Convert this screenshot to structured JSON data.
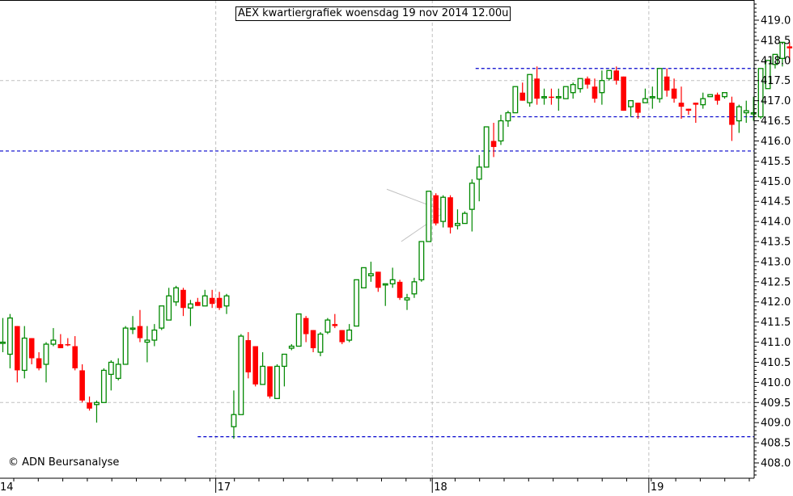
{
  "title": "AEX kwartiergrafiek woensdag 19 nov 2014 12.00u",
  "copyright": "© ADN Beursanalyse",
  "colors": {
    "up": "#008800",
    "down": "#ff0000",
    "support_line": "#0000cc",
    "grid": "#c0c0c0",
    "axis": "#000000",
    "triangle": "#c0c0c0"
  },
  "chart_data": {
    "type": "candlestick",
    "title": "AEX kwartiergrafiek woensdag 19 nov 2014 12.00u",
    "xlabel": "",
    "ylabel": "",
    "ylim": [
      407.6,
      419.5
    ],
    "y_ticks": [
      "419.0",
      "418.5",
      "418.0",
      "417.5",
      "417.0",
      "416.5",
      "416.0",
      "415.5",
      "415.0",
      "414.5",
      "414.0",
      "413.5",
      "413.0",
      "412.5",
      "412.0",
      "411.5",
      "411.0",
      "410.5",
      "410.0",
      "409.5",
      "409.0",
      "408.5",
      "408.0"
    ],
    "x_day_labels": [
      {
        "label": "14",
        "index": 0
      },
      {
        "label": "17",
        "index": 29.5
      },
      {
        "label": "18",
        "index": 59.5
      },
      {
        "label": "19",
        "index": 89.5
      }
    ],
    "horizontal_lines": [
      {
        "price": 415.75,
        "from_index": 0,
        "to_index": 104,
        "style": "dashed",
        "color": "#0000cc"
      },
      {
        "price": 408.65,
        "from_index": 27,
        "to_index": 104,
        "style": "dashed",
        "color": "#0000cc"
      },
      {
        "price": 417.8,
        "from_index": 65.5,
        "to_index": 104,
        "style": "dashed",
        "color": "#0000cc"
      },
      {
        "price": 416.6,
        "from_index": 70.5,
        "to_index": 104,
        "style": "dashed",
        "color": "#0000cc"
      }
    ],
    "grid_lines": {
      "prices": [
        417.5,
        409.5
      ],
      "day_separators": [
        29.5,
        59.5,
        89.5
      ]
    },
    "triangle_pattern": {
      "apex_index": 61.3,
      "apex_price": 414.25,
      "upper_start": [
        53.2,
        414.8
      ],
      "lower_start": [
        55.2,
        413.5
      ]
    },
    "candles": [
      {
        "o": 411.0,
        "h": 411.6,
        "l": 410.75,
        "c": 411.0
      },
      {
        "o": 410.7,
        "h": 411.7,
        "l": 410.35,
        "c": 411.6
      },
      {
        "o": 411.4,
        "h": 411.4,
        "l": 410.0,
        "c": 410.3
      },
      {
        "o": 410.3,
        "h": 411.4,
        "l": 410.1,
        "c": 411.1
      },
      {
        "o": 411.1,
        "h": 411.1,
        "l": 410.45,
        "c": 410.6
      },
      {
        "o": 410.6,
        "h": 410.75,
        "l": 410.3,
        "c": 410.35
      },
      {
        "o": 410.45,
        "h": 411.0,
        "l": 410.0,
        "c": 410.95
      },
      {
        "o": 410.95,
        "h": 411.35,
        "l": 410.9,
        "c": 411.05
      },
      {
        "o": 410.95,
        "h": 411.2,
        "l": 410.85,
        "c": 410.85
      },
      {
        "o": 410.95,
        "h": 411.1,
        "l": 410.9,
        "c": 410.92
      },
      {
        "o": 410.9,
        "h": 411.15,
        "l": 410.3,
        "c": 410.35
      },
      {
        "o": 410.3,
        "h": 410.45,
        "l": 409.5,
        "c": 409.55
      },
      {
        "o": 409.5,
        "h": 409.65,
        "l": 409.3,
        "c": 409.35
      },
      {
        "o": 409.45,
        "h": 409.55,
        "l": 409.0,
        "c": 409.5
      },
      {
        "o": 409.5,
        "h": 410.35,
        "l": 409.5,
        "c": 410.3
      },
      {
        "o": 410.2,
        "h": 410.55,
        "l": 409.8,
        "c": 410.5
      },
      {
        "o": 410.1,
        "h": 410.6,
        "l": 410.05,
        "c": 410.45
      },
      {
        "o": 410.45,
        "h": 411.4,
        "l": 410.45,
        "c": 411.35
      },
      {
        "o": 411.35,
        "h": 411.65,
        "l": 411.2,
        "c": 411.35
      },
      {
        "o": 411.4,
        "h": 411.8,
        "l": 411.0,
        "c": 411.1
      },
      {
        "o": 411.0,
        "h": 411.4,
        "l": 410.5,
        "c": 411.05
      },
      {
        "o": 411.05,
        "h": 411.45,
        "l": 410.9,
        "c": 411.3
      },
      {
        "o": 411.35,
        "h": 411.9,
        "l": 411.3,
        "c": 411.9
      },
      {
        "o": 411.55,
        "h": 412.35,
        "l": 411.55,
        "c": 412.15
      },
      {
        "o": 412.0,
        "h": 412.4,
        "l": 411.9,
        "c": 412.35
      },
      {
        "o": 412.3,
        "h": 412.35,
        "l": 411.65,
        "c": 411.85
      },
      {
        "o": 411.85,
        "h": 412.05,
        "l": 411.4,
        "c": 411.95
      },
      {
        "o": 412.0,
        "h": 412.1,
        "l": 411.9,
        "c": 411.9
      },
      {
        "o": 411.9,
        "h": 412.3,
        "l": 411.9,
        "c": 412.15
      },
      {
        "o": 412.1,
        "h": 412.3,
        "l": 411.85,
        "c": 411.95
      },
      {
        "o": 412.1,
        "h": 412.25,
        "l": 411.8,
        "c": 411.85
      },
      {
        "o": 411.9,
        "h": 412.2,
        "l": 411.7,
        "c": 412.15
      },
      {
        "o": 408.9,
        "h": 409.8,
        "l": 408.6,
        "c": 409.2
      },
      {
        "o": 409.2,
        "h": 411.2,
        "l": 409.2,
        "c": 411.15
      },
      {
        "o": 411.05,
        "h": 411.25,
        "l": 410.1,
        "c": 410.25
      },
      {
        "o": 410.9,
        "h": 410.9,
        "l": 409.9,
        "c": 409.95
      },
      {
        "o": 409.95,
        "h": 410.75,
        "l": 409.95,
        "c": 410.4
      },
      {
        "o": 410.4,
        "h": 410.4,
        "l": 409.6,
        "c": 409.65
      },
      {
        "o": 409.6,
        "h": 410.45,
        "l": 409.6,
        "c": 410.4
      },
      {
        "o": 410.4,
        "h": 410.7,
        "l": 409.9,
        "c": 410.7
      },
      {
        "o": 410.85,
        "h": 410.95,
        "l": 410.8,
        "c": 410.9
      },
      {
        "o": 410.9,
        "h": 411.7,
        "l": 410.9,
        "c": 411.7
      },
      {
        "o": 411.6,
        "h": 411.65,
        "l": 411.0,
        "c": 411.2
      },
      {
        "o": 411.3,
        "h": 411.25,
        "l": 410.75,
        "c": 410.85
      },
      {
        "o": 410.75,
        "h": 411.25,
        "l": 410.65,
        "c": 411.2
      },
      {
        "o": 411.25,
        "h": 411.6,
        "l": 411.2,
        "c": 411.55
      },
      {
        "o": 411.45,
        "h": 411.7,
        "l": 411.35,
        "c": 411.4
      },
      {
        "o": 411.3,
        "h": 411.3,
        "l": 410.95,
        "c": 411.0
      },
      {
        "o": 411.05,
        "h": 411.45,
        "l": 411.0,
        "c": 411.3
      },
      {
        "o": 411.4,
        "h": 412.55,
        "l": 411.4,
        "c": 412.55
      },
      {
        "o": 412.35,
        "h": 412.85,
        "l": 412.35,
        "c": 412.85
      },
      {
        "o": 412.65,
        "h": 413.0,
        "l": 412.5,
        "c": 412.7
      },
      {
        "o": 412.75,
        "h": 412.75,
        "l": 412.25,
        "c": 412.35
      },
      {
        "o": 412.45,
        "h": 412.45,
        "l": 411.9,
        "c": 412.45
      },
      {
        "o": 412.45,
        "h": 412.85,
        "l": 412.35,
        "c": 412.55
      },
      {
        "o": 412.5,
        "h": 412.55,
        "l": 412.05,
        "c": 412.1
      },
      {
        "o": 412.05,
        "h": 412.2,
        "l": 411.8,
        "c": 412.1
      },
      {
        "o": 412.2,
        "h": 412.6,
        "l": 412.1,
        "c": 412.5
      },
      {
        "o": 412.55,
        "h": 413.5,
        "l": 412.5,
        "c": 413.5
      },
      {
        "o": 413.5,
        "h": 414.75,
        "l": 413.5,
        "c": 414.75
      },
      {
        "o": 414.65,
        "h": 414.7,
        "l": 413.9,
        "c": 413.95
      },
      {
        "o": 414.0,
        "h": 414.65,
        "l": 413.85,
        "c": 414.6
      },
      {
        "o": 414.6,
        "h": 414.65,
        "l": 413.7,
        "c": 413.85
      },
      {
        "o": 413.9,
        "h": 414.3,
        "l": 413.8,
        "c": 413.95
      },
      {
        "o": 413.95,
        "h": 414.25,
        "l": 414.0,
        "c": 414.2
      },
      {
        "o": 414.3,
        "h": 415.05,
        "l": 413.75,
        "c": 414.95
      },
      {
        "o": 415.05,
        "h": 415.65,
        "l": 414.5,
        "c": 415.35
      },
      {
        "o": 415.35,
        "h": 416.35,
        "l": 415.35,
        "c": 416.35
      },
      {
        "o": 416.0,
        "h": 416.45,
        "l": 415.6,
        "c": 415.85
      },
      {
        "o": 416.0,
        "h": 416.65,
        "l": 415.9,
        "c": 416.5
      },
      {
        "o": 416.5,
        "h": 416.75,
        "l": 416.35,
        "c": 416.7
      },
      {
        "o": 416.7,
        "h": 417.35,
        "l": 416.7,
        "c": 417.35
      },
      {
        "o": 417.2,
        "h": 417.45,
        "l": 417.0,
        "c": 417.0
      },
      {
        "o": 416.95,
        "h": 417.6,
        "l": 416.85,
        "c": 417.65
      },
      {
        "o": 417.55,
        "h": 417.85,
        "l": 416.9,
        "c": 417.05
      },
      {
        "o": 417.1,
        "h": 417.3,
        "l": 416.9,
        "c": 417.1
      },
      {
        "o": 417.1,
        "h": 417.3,
        "l": 416.9,
        "c": 417.08
      },
      {
        "o": 417.1,
        "h": 417.3,
        "l": 416.75,
        "c": 417.1
      },
      {
        "o": 417.05,
        "h": 417.35,
        "l": 417.05,
        "c": 417.35
      },
      {
        "o": 417.2,
        "h": 417.45,
        "l": 417.05,
        "c": 417.4
      },
      {
        "o": 417.3,
        "h": 417.5,
        "l": 417.2,
        "c": 417.55
      },
      {
        "o": 417.55,
        "h": 417.6,
        "l": 417.3,
        "c": 417.4
      },
      {
        "o": 417.35,
        "h": 417.55,
        "l": 416.95,
        "c": 417.05
      },
      {
        "o": 417.2,
        "h": 417.75,
        "l": 416.9,
        "c": 417.5
      },
      {
        "o": 417.55,
        "h": 417.75,
        "l": 417.5,
        "c": 417.75
      },
      {
        "o": 417.75,
        "h": 417.85,
        "l": 417.4,
        "c": 417.5
      },
      {
        "o": 417.6,
        "h": 417.6,
        "l": 416.75,
        "c": 416.75
      },
      {
        "o": 416.85,
        "h": 417.0,
        "l": 416.6,
        "c": 417.0
      },
      {
        "o": 416.95,
        "h": 416.95,
        "l": 416.55,
        "c": 416.7
      },
      {
        "o": 416.95,
        "h": 417.3,
        "l": 416.95,
        "c": 417.05
      },
      {
        "o": 417.1,
        "h": 417.35,
        "l": 416.8,
        "c": 417.1
      },
      {
        "o": 417.05,
        "h": 417.8,
        "l": 416.95,
        "c": 417.8
      },
      {
        "o": 417.6,
        "h": 417.8,
        "l": 417.1,
        "c": 417.25
      },
      {
        "o": 417.3,
        "h": 417.55,
        "l": 416.95,
        "c": 417.05
      },
      {
        "o": 416.95,
        "h": 417.35,
        "l": 416.55,
        "c": 416.85
      },
      {
        "o": 416.8,
        "h": 416.8,
        "l": 416.65,
        "c": 416.75
      },
      {
        "o": 416.95,
        "h": 416.95,
        "l": 416.45,
        "c": 416.9
      },
      {
        "o": 416.9,
        "h": 417.2,
        "l": 416.8,
        "c": 417.05
      },
      {
        "o": 417.1,
        "h": 417.15,
        "l": 417.1,
        "c": 417.15
      },
      {
        "o": 417.15,
        "h": 417.2,
        "l": 416.9,
        "c": 417.0
      },
      {
        "o": 417.1,
        "h": 417.2,
        "l": 417.05,
        "c": 417.2
      },
      {
        "o": 416.95,
        "h": 417.1,
        "l": 416.0,
        "c": 416.4
      },
      {
        "o": 416.5,
        "h": 416.9,
        "l": 416.2,
        "c": 416.85
      },
      {
        "o": 416.7,
        "h": 417.0,
        "l": 416.45,
        "c": 416.75
      },
      {
        "o": 416.7,
        "h": 417.1,
        "l": 416.5,
        "c": 416.7
      },
      {
        "o": 416.6,
        "h": 417.8,
        "l": 416.55,
        "c": 417.8
      },
      {
        "o": 417.3,
        "h": 418.0,
        "l": 417.3,
        "c": 418.0
      },
      {
        "o": 417.9,
        "h": 418.15,
        "l": 417.8,
        "c": 418.15
      },
      {
        "o": 418.05,
        "h": 418.35,
        "l": 417.85,
        "c": 418.45
      },
      {
        "o": 418.35,
        "h": 418.45,
        "l": 417.95,
        "c": 418.3
      },
      {
        "o": 418.3,
        "h": 418.5,
        "l": 418.2,
        "c": 418.5
      },
      {
        "o": 418.4,
        "h": 418.45,
        "l": 418.3,
        "c": 418.3
      },
      {
        "o": 418.3,
        "h": 418.35,
        "l": 418.2,
        "c": 418.25
      }
    ]
  }
}
